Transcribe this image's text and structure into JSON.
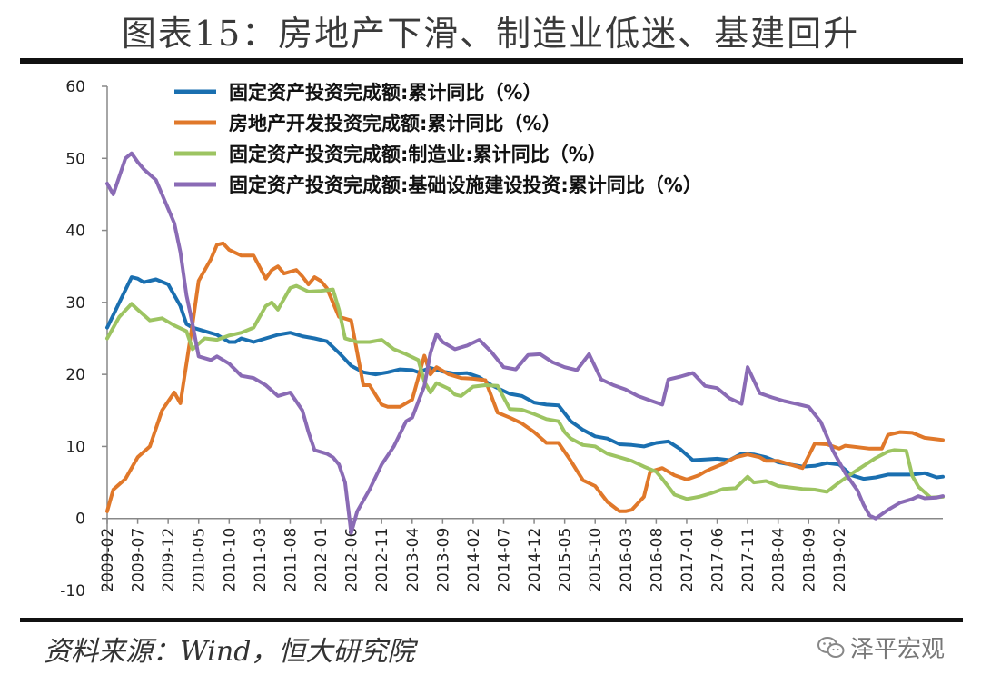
{
  "figure": {
    "title": "图表15：房地产下滑、制造业低迷、基建回升",
    "source": "资料来源：Wind，恒大研究院",
    "watermark": "泽平宏观"
  },
  "chart_data": {
    "type": "line",
    "ylim": [
      -10,
      60
    ],
    "yticks": [
      -10,
      0,
      10,
      20,
      30,
      40,
      50,
      60
    ],
    "x_tick_labels": [
      "2009-02",
      "2009-07",
      "2009-12",
      "2010-05",
      "2010-10",
      "2011-03",
      "2011-08",
      "2012-01",
      "2012-06",
      "2012-11",
      "2013-04",
      "2013-09",
      "2014-02",
      "2014-07",
      "2014-12",
      "2015-05",
      "2015-10",
      "2016-03",
      "2016-08",
      "2017-01",
      "2017-06",
      "2017-11",
      "2018-04",
      "2018-09",
      "2019-02"
    ],
    "x_months_start": "2009-02",
    "x_months_end": "2019-07",
    "series": [
      {
        "name": "固定资产投资完成额:累计同比（%）",
        "color": "#1a6fb0",
        "points": [
          [
            0,
            26.5
          ],
          [
            2,
            30
          ],
          [
            4,
            33.5
          ],
          [
            5,
            33.3
          ],
          [
            6,
            32.8
          ],
          [
            8,
            33.2
          ],
          [
            10,
            32.5
          ],
          [
            12,
            29.5
          ],
          [
            13,
            27
          ],
          [
            14,
            26.5
          ],
          [
            16,
            26
          ],
          [
            18,
            25.5
          ],
          [
            20,
            24.5
          ],
          [
            21,
            24.5
          ],
          [
            22,
            25
          ],
          [
            24,
            24.5
          ],
          [
            26,
            25
          ],
          [
            28,
            25.5
          ],
          [
            30,
            25.8
          ],
          [
            32,
            25.3
          ],
          [
            34,
            25
          ],
          [
            36,
            24.6
          ],
          [
            38,
            23
          ],
          [
            40,
            21.2
          ],
          [
            42,
            20.3
          ],
          [
            44,
            20
          ],
          [
            46,
            20.3
          ],
          [
            48,
            20.7
          ],
          [
            50,
            20.6
          ],
          [
            51,
            20.3
          ],
          [
            53,
            20.9
          ],
          [
            55,
            20.4
          ],
          [
            57,
            20.1
          ],
          [
            59,
            20.2
          ],
          [
            61,
            19.6
          ],
          [
            63,
            18.5
          ],
          [
            66,
            17.3
          ],
          [
            68,
            17
          ],
          [
            70,
            16.1
          ],
          [
            72,
            15.8
          ],
          [
            74,
            15.7
          ],
          [
            76,
            13.5
          ],
          [
            78,
            12.3
          ],
          [
            80,
            11.4
          ],
          [
            82,
            11.1
          ],
          [
            84,
            10.3
          ],
          [
            86,
            10.2
          ],
          [
            88,
            10
          ],
          [
            90,
            10.5
          ],
          [
            92,
            10.7
          ],
          [
            94,
            9.6
          ],
          [
            96,
            8.1
          ],
          [
            98,
            8.2
          ],
          [
            100,
            8.3
          ],
          [
            102,
            8.1
          ],
          [
            104,
            9
          ],
          [
            106,
            8.9
          ],
          [
            108,
            8.5
          ],
          [
            110,
            7.8
          ],
          [
            112,
            7.5
          ],
          [
            114,
            7.2
          ],
          [
            116,
            7.3
          ],
          [
            118,
            7.7
          ],
          [
            120,
            7.5
          ],
          [
            122,
            6
          ],
          [
            124,
            5.5
          ],
          [
            126,
            5.7
          ],
          [
            128,
            6.1
          ],
          [
            130,
            6.1
          ],
          [
            132,
            6.1
          ],
          [
            134,
            6.3
          ],
          [
            136,
            5.7
          ],
          [
            137,
            5.8
          ]
        ]
      },
      {
        "name": "房地产开发投资完成额:累计同比（%）",
        "color": "#e0782a",
        "points": [
          [
            0,
            1
          ],
          [
            1,
            4
          ],
          [
            3,
            5.5
          ],
          [
            5,
            8.5
          ],
          [
            7,
            10
          ],
          [
            9,
            15
          ],
          [
            11,
            17.5
          ],
          [
            12,
            16
          ],
          [
            14,
            27
          ],
          [
            15,
            33
          ],
          [
            17,
            36
          ],
          [
            18,
            38
          ],
          [
            19,
            38.2
          ],
          [
            20,
            37.3
          ],
          [
            22,
            36.5
          ],
          [
            24,
            36.5
          ],
          [
            26,
            33.3
          ],
          [
            27,
            34.5
          ],
          [
            28,
            35
          ],
          [
            29,
            34
          ],
          [
            31,
            34.5
          ],
          [
            32,
            33.6
          ],
          [
            33,
            32.5
          ],
          [
            34,
            33.5
          ],
          [
            35,
            33
          ],
          [
            36,
            32
          ],
          [
            38,
            28
          ],
          [
            40,
            27.5
          ],
          [
            42,
            18.5
          ],
          [
            43,
            18.5
          ],
          [
            45,
            15.8
          ],
          [
            46,
            15.5
          ],
          [
            48,
            15.5
          ],
          [
            50,
            16.5
          ],
          [
            52,
            22.6
          ],
          [
            53,
            20
          ],
          [
            54,
            21
          ],
          [
            56,
            20
          ],
          [
            58,
            19.5
          ],
          [
            60,
            19.4
          ],
          [
            62,
            19.2
          ],
          [
            64,
            14.7
          ],
          [
            66,
            14
          ],
          [
            68,
            13.2
          ],
          [
            70,
            12
          ],
          [
            72,
            10.5
          ],
          [
            74,
            10.5
          ],
          [
            76,
            8
          ],
          [
            78,
            5.3
          ],
          [
            80,
            4.5
          ],
          [
            82,
            2.3
          ],
          [
            84,
            1
          ],
          [
            85,
            1
          ],
          [
            86,
            1.2
          ],
          [
            88,
            3
          ],
          [
            89,
            6.5
          ],
          [
            91,
            7
          ],
          [
            93,
            6
          ],
          [
            95,
            5.4
          ],
          [
            97,
            6
          ],
          [
            98,
            6.5
          ],
          [
            99,
            6.9
          ],
          [
            101,
            7.6
          ],
          [
            103,
            8.5
          ],
          [
            105,
            8.9
          ],
          [
            107,
            8.5
          ],
          [
            108,
            8
          ],
          [
            110,
            8
          ],
          [
            112,
            7.5
          ],
          [
            114,
            7
          ],
          [
            116,
            10.4
          ],
          [
            118,
            10.3
          ],
          [
            120,
            9.7
          ],
          [
            121,
            10.1
          ],
          [
            123,
            9.9
          ],
          [
            125,
            9.7
          ],
          [
            127,
            9.7
          ],
          [
            128,
            11.6
          ],
          [
            130,
            12
          ],
          [
            132,
            11.9
          ],
          [
            134,
            11.2
          ],
          [
            136,
            11
          ],
          [
            137,
            10.9
          ]
        ]
      },
      {
        "name": "固定资产投资完成额:制造业:累计同比（%）",
        "color": "#9dc462",
        "points": [
          [
            0,
            25
          ],
          [
            2,
            28
          ],
          [
            4,
            29.8
          ],
          [
            5,
            29
          ],
          [
            7,
            27.5
          ],
          [
            9,
            27.8
          ],
          [
            11,
            26.8
          ],
          [
            13,
            26
          ],
          [
            14,
            23.5
          ],
          [
            16,
            25
          ],
          [
            18,
            24.8
          ],
          [
            20,
            25.4
          ],
          [
            22,
            25.8
          ],
          [
            24,
            26.5
          ],
          [
            26,
            29.5
          ],
          [
            27,
            30
          ],
          [
            28,
            29
          ],
          [
            30,
            32
          ],
          [
            31,
            32.3
          ],
          [
            33,
            31.5
          ],
          [
            35,
            31.6
          ],
          [
            37,
            31.8
          ],
          [
            38,
            29
          ],
          [
            39,
            25
          ],
          [
            41,
            24.5
          ],
          [
            43,
            24.5
          ],
          [
            45,
            24.8
          ],
          [
            47,
            23.5
          ],
          [
            49,
            22.8
          ],
          [
            51,
            22
          ],
          [
            52,
            19
          ],
          [
            53,
            17.5
          ],
          [
            54,
            18.8
          ],
          [
            56,
            18
          ],
          [
            57,
            17.2
          ],
          [
            58,
            17
          ],
          [
            60,
            18.3
          ],
          [
            62,
            18.5
          ],
          [
            64,
            18.4
          ],
          [
            66,
            15.2
          ],
          [
            68,
            15.1
          ],
          [
            70,
            14.5
          ],
          [
            72,
            13.8
          ],
          [
            74,
            13.5
          ],
          [
            75,
            12
          ],
          [
            76,
            11.1
          ],
          [
            78,
            10.2
          ],
          [
            80,
            10
          ],
          [
            82,
            9
          ],
          [
            84,
            8.5
          ],
          [
            86,
            8
          ],
          [
            88,
            7.2
          ],
          [
            90,
            6.5
          ],
          [
            91,
            5.5
          ],
          [
            93,
            3.3
          ],
          [
            95,
            2.7
          ],
          [
            97,
            3
          ],
          [
            99,
            3.5
          ],
          [
            101,
            4.1
          ],
          [
            103,
            4.2
          ],
          [
            105,
            5.8
          ],
          [
            106,
            5
          ],
          [
            108,
            5.2
          ],
          [
            110,
            4.5
          ],
          [
            112,
            4.3
          ],
          [
            114,
            4.1
          ],
          [
            116,
            4
          ],
          [
            118,
            3.7
          ],
          [
            120,
            5
          ],
          [
            122,
            6.2
          ],
          [
            124,
            7.3
          ],
          [
            126,
            8.4
          ],
          [
            128,
            9.3
          ],
          [
            129,
            9.5
          ],
          [
            131,
            9.4
          ],
          [
            132,
            5.9
          ],
          [
            133,
            4.4
          ],
          [
            135,
            2.9
          ],
          [
            137,
            3
          ]
        ]
      },
      {
        "name": "固定资产投资完成额:基础设施建设投资:累计同比（%）",
        "color": "#8a6bb5",
        "points": [
          [
            0,
            46.5
          ],
          [
            1,
            45
          ],
          [
            2,
            47.5
          ],
          [
            3,
            50
          ],
          [
            4,
            50.7
          ],
          [
            5,
            49.5
          ],
          [
            6,
            48.5
          ],
          [
            8,
            47
          ],
          [
            9,
            45
          ],
          [
            10,
            43
          ],
          [
            11,
            41
          ],
          [
            12,
            37
          ],
          [
            13,
            31
          ],
          [
            14,
            27
          ],
          [
            15,
            22.5
          ],
          [
            17,
            22
          ],
          [
            18,
            22.5
          ],
          [
            20,
            21.5
          ],
          [
            22,
            19.8
          ],
          [
            24,
            19.5
          ],
          [
            26,
            18.5
          ],
          [
            28,
            17
          ],
          [
            30,
            17.5
          ],
          [
            32,
            15
          ],
          [
            33,
            12
          ],
          [
            34,
            9.5
          ],
          [
            36,
            9
          ],
          [
            37,
            8.5
          ],
          [
            38,
            7.5
          ],
          [
            39,
            5
          ],
          [
            40,
            -2
          ],
          [
            41,
            1
          ],
          [
            43,
            4
          ],
          [
            45,
            7.5
          ],
          [
            47,
            10
          ],
          [
            49,
            13.5
          ],
          [
            50,
            14
          ],
          [
            52,
            18.4
          ],
          [
            53,
            23
          ],
          [
            54,
            25.6
          ],
          [
            55,
            24.5
          ],
          [
            57,
            23.5
          ],
          [
            59,
            24
          ],
          [
            61,
            24.8
          ],
          [
            63,
            23.1
          ],
          [
            65,
            21
          ],
          [
            67,
            20.7
          ],
          [
            69,
            22.7
          ],
          [
            71,
            22.8
          ],
          [
            73,
            21.7
          ],
          [
            75,
            21
          ],
          [
            77,
            20.6
          ],
          [
            79,
            22.8
          ],
          [
            81,
            19.3
          ],
          [
            83,
            18.5
          ],
          [
            85,
            17.9
          ],
          [
            87,
            17
          ],
          [
            89,
            16.4
          ],
          [
            91,
            15.8
          ],
          [
            92,
            19.3
          ],
          [
            94,
            19.7
          ],
          [
            96,
            20.2
          ],
          [
            98,
            18.4
          ],
          [
            100,
            18.1
          ],
          [
            102,
            16.7
          ],
          [
            104,
            15.9
          ],
          [
            105,
            21
          ],
          [
            107,
            17.4
          ],
          [
            109,
            16.8
          ],
          [
            111,
            16.3
          ],
          [
            113,
            15.9
          ],
          [
            115,
            15.5
          ],
          [
            117,
            13.4
          ],
          [
            119,
            9.4
          ],
          [
            121,
            6.3
          ],
          [
            123,
            3.9
          ],
          [
            124,
            1.9
          ],
          [
            125,
            0.4
          ],
          [
            126,
            0
          ],
          [
            128,
            1.2
          ],
          [
            130,
            2.2
          ],
          [
            132,
            2.7
          ],
          [
            133,
            3.1
          ],
          [
            134,
            2.8
          ],
          [
            136,
            2.9
          ],
          [
            137,
            3.1
          ]
        ]
      }
    ]
  }
}
